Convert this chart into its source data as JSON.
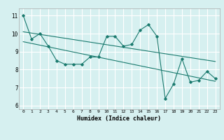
{
  "title": "",
  "xlabel": "Humidex (Indice chaleur)",
  "ylabel": "",
  "bg_color": "#d6f0f0",
  "grid_color": "#ffffff",
  "line_color": "#1a7a6e",
  "xlim": [
    -0.5,
    23.5
  ],
  "ylim": [
    5.8,
    11.4
  ],
  "xticks": [
    0,
    1,
    2,
    3,
    4,
    5,
    6,
    7,
    8,
    9,
    10,
    11,
    12,
    13,
    14,
    15,
    16,
    17,
    18,
    19,
    20,
    21,
    22,
    23
  ],
  "yticks": [
    6,
    7,
    8,
    9,
    10,
    11
  ],
  "zigzag_x": [
    0,
    1,
    2,
    3,
    4,
    5,
    6,
    7,
    8,
    9,
    10,
    11,
    12,
    13,
    14,
    15,
    16,
    17,
    18,
    19,
    20,
    21,
    22,
    23
  ],
  "zigzag_y": [
    11.0,
    9.7,
    10.0,
    9.3,
    8.5,
    8.3,
    8.3,
    8.3,
    8.7,
    8.7,
    9.85,
    9.85,
    9.3,
    9.4,
    10.2,
    10.5,
    9.85,
    6.4,
    7.2,
    8.6,
    7.3,
    7.4,
    7.9,
    7.5
  ],
  "line1_x": [
    0,
    23
  ],
  "line1_y": [
    10.1,
    8.45
  ],
  "line2_x": [
    0,
    23
  ],
  "line2_y": [
    9.55,
    7.35
  ]
}
